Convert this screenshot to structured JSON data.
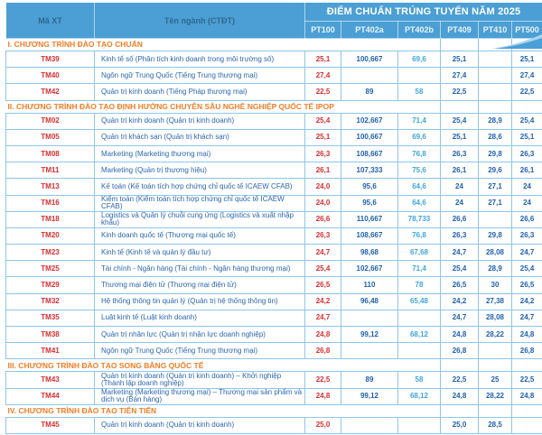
{
  "header": {
    "col_code": "Mã XT",
    "col_major": "Tên ngành (CTĐT)",
    "group_title": "ĐIỂM CHUẨN TRÚNG TUYỂN NĂM 2025",
    "method_columns": [
      "PT100",
      "PT402a",
      "PT402b",
      "PT409",
      "PT410",
      "PT500"
    ]
  },
  "colors": {
    "header_bg": "#4b9fd4",
    "header_label": "#2f678f",
    "section_orange": "#f07e26",
    "code_red": "#d92f32",
    "value_dark_blue": "#2061ad",
    "value_light_blue": "#3fa6da",
    "grid_border": "#8ec6ea",
    "swoosh_blue": "#4aa0d8",
    "swoosh_light": "#aad4ef"
  },
  "sections": [
    {
      "title": "I. CHƯƠNG TRÌNH ĐÀO TẠO CHUẨN",
      "rows": [
        {
          "code": "TM39",
          "name": "Kinh tế số (Phân tích kinh doanh trong môi trường số)",
          "scores": [
            "25,1",
            "100,667",
            "69,6",
            "25,1",
            "",
            "25,1"
          ]
        },
        {
          "code": "TM40",
          "name": "Ngôn ngữ Trung Quốc (Tiếng Trung thương mại)",
          "scores": [
            "27,4",
            "",
            "",
            "27,4",
            "",
            "27,4"
          ]
        },
        {
          "code": "TM42",
          "name": "Quản trị kinh doanh (Tiếng Pháp thương mại)",
          "scores": [
            "22,5",
            "89",
            "58",
            "22,5",
            "",
            "22,5"
          ]
        }
      ]
    },
    {
      "title": "II. CHƯƠNG TRÌNH ĐÀO TẠO ĐỊNH HƯỚNG CHUYÊN SÂU NGHỀ NGHIỆP QUỐC TẾ IPOP",
      "rows": [
        {
          "code": "TM02",
          "name": "Quản trị kinh doanh (Quản trị kinh doanh)",
          "scores": [
            "25,4",
            "102,667",
            "71,4",
            "25,4",
            "28,9",
            "25,4"
          ]
        },
        {
          "code": "TM05",
          "name": "Quản trị khách sạn (Quản trị khách sạn)",
          "scores": [
            "25,1",
            "100,667",
            "69,6",
            "25,1",
            "28,6",
            "25,1"
          ]
        },
        {
          "code": "TM08",
          "name": "Marketing (Marketing thương mại)",
          "scores": [
            "26,3",
            "108,667",
            "76,8",
            "26,3",
            "29,8",
            "26,3"
          ]
        },
        {
          "code": "TM11",
          "name": "Marketing (Quản trị thương hiệu)",
          "scores": [
            "26,1",
            "107,333",
            "75,6",
            "26,1",
            "29,6",
            "26,1"
          ]
        },
        {
          "code": "TM13",
          "name": "Kế toán (Kế toán tích hợp chứng chỉ quốc tế ICAEW CFAB)",
          "scores": [
            "24,0",
            "95,6",
            "64,6",
            "24",
            "27,1",
            "24"
          ]
        },
        {
          "code": "TM16",
          "name": "Kiểm toán (Kiểm toán tích hợp chứng chỉ quốc tế ICAEW CFAB)",
          "scores": [
            "24,0",
            "95,6",
            "64,6",
            "24",
            "27,1",
            "24"
          ]
        },
        {
          "code": "TM18",
          "name": "Logistics và Quản lý chuỗi cung ứng (Logistics và xuất nhập khẩu)",
          "scores": [
            "26,6",
            "110,667",
            "78,733",
            "26,6",
            "",
            "26,6"
          ]
        },
        {
          "code": "TM20",
          "name": "Kinh doanh quốc tế (Thương mại quốc tế)",
          "scores": [
            "26,3",
            "108,667",
            "76,8",
            "26,3",
            "29,8",
            "26,3"
          ]
        },
        {
          "code": "TM23",
          "name": "Kinh tế (Kinh tế và quản lý đầu tư)",
          "scores": [
            "24,7",
            "98,68",
            "67,68",
            "24,7",
            "28,08",
            "24,7"
          ]
        },
        {
          "code": "TM25",
          "name": "Tài chính - Ngân hàng (Tài chính - Ngân hàng thương mại)",
          "scores": [
            "25,4",
            "102,667",
            "71,4",
            "25,4",
            "28,9",
            "25,4"
          ]
        },
        {
          "code": "TM29",
          "name": "Thương mại điện tử (Thương mại điện tử)",
          "scores": [
            "26,5",
            "110",
            "78",
            "26,5",
            "30",
            "26,5"
          ]
        },
        {
          "code": "TM32",
          "name": "Hệ thống thông tin quản lý (Quản trị hệ thống thông tin)",
          "scores": [
            "24,2",
            "96,48",
            "65,48",
            "24,2",
            "27,38",
            "24,2"
          ]
        },
        {
          "code": "TM35",
          "name": "Luật kinh tế (Luật kinh doanh)",
          "scores": [
            "24,7",
            "",
            "",
            "24,7",
            "28,08",
            "24,7"
          ]
        },
        {
          "code": "TM38",
          "name": "Quản trị nhân lực (Quản trị nhân lực doanh nghiệp)",
          "scores": [
            "24,8",
            "99,12",
            "68,12",
            "24,8",
            "28,22",
            "24,8"
          ]
        },
        {
          "code": "TM41",
          "name": "Ngôn ngữ Trung Quốc (Tiếng Trung thương mại)",
          "scores": [
            "26,8",
            "",
            "",
            "26,8",
            "",
            "26,8"
          ]
        }
      ]
    },
    {
      "title": "III. CHƯƠNG TRÌNH ĐÀO TẠO SONG BẰNG QUỐC TẾ",
      "rows": [
        {
          "code": "TM43",
          "name": "Quản trị kinh doanh (Quản trị kinh doanh) – Khởi nghiệp (Thành lập doanh nghiệp)",
          "scores": [
            "22,5",
            "89",
            "58",
            "22,5",
            "25",
            "22,5"
          ]
        },
        {
          "code": "TM44",
          "name": "Marketing (Marketing thương mại) – Thương mại sản phẩm và dịch vụ (Bán hàng)",
          "scores": [
            "24,8",
            "99,12",
            "68,12",
            "24,8",
            "28,22",
            "24,8"
          ]
        }
      ]
    },
    {
      "title": "IV. CHƯƠNG TRÌNH ĐÀO TẠO TIÊN TIẾN",
      "rows": [
        {
          "code": "TM45",
          "name": "Quản trị kinh doanh (Quản trị kinh doanh)",
          "scores": [
            "25,0",
            "",
            "",
            "25,0",
            "28,5",
            ""
          ]
        }
      ]
    }
  ]
}
